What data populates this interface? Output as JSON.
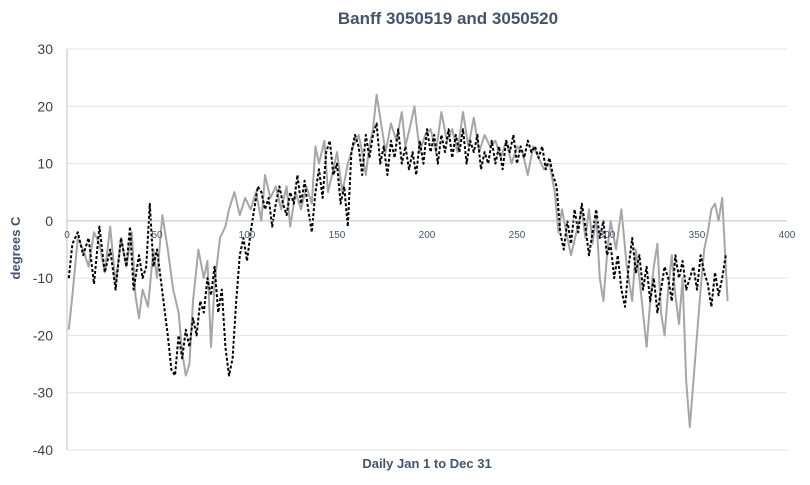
{
  "chart_data": {
    "type": "line",
    "title": "Banff 3050519 and 3050520",
    "xlabel": "Daily Jan 1 to Dec 31",
    "ylabel": "degrees C",
    "xlim": [
      0,
      400
    ],
    "ylim": [
      -40,
      30
    ],
    "x_ticks": [
      "0",
      "50",
      "100",
      "150",
      "200",
      "250",
      "300",
      "350",
      "400"
    ],
    "y_ticks": [
      "30",
      "20",
      "10",
      "0",
      "-10",
      "-20",
      "-30",
      "-40"
    ],
    "grid": "horizontal",
    "legend": "none",
    "series": [
      {
        "color": "#a6a6a6",
        "style": "solid",
        "points": [
          [
            1,
            -19
          ],
          [
            3,
            -13
          ],
          [
            6,
            -3
          ],
          [
            9,
            -5
          ],
          [
            12,
            -8
          ],
          [
            15,
            -2
          ],
          [
            18,
            -4
          ],
          [
            21,
            -9
          ],
          [
            24,
            -1
          ],
          [
            27,
            -11
          ],
          [
            30,
            -3
          ],
          [
            33,
            -8
          ],
          [
            36,
            -2
          ],
          [
            38,
            -13
          ],
          [
            40,
            -17
          ],
          [
            42,
            -12
          ],
          [
            45,
            -15
          ],
          [
            48,
            -5
          ],
          [
            50,
            -10
          ],
          [
            53,
            1
          ],
          [
            56,
            -5
          ],
          [
            59,
            -12
          ],
          [
            62,
            -16
          ],
          [
            64,
            -23
          ],
          [
            66,
            -27
          ],
          [
            68,
            -25
          ],
          [
            70,
            -14
          ],
          [
            73,
            -5
          ],
          [
            76,
            -10
          ],
          [
            78,
            -7
          ],
          [
            80,
            -22
          ],
          [
            82,
            -11
          ],
          [
            85,
            -3
          ],
          [
            88,
            -1
          ],
          [
            90,
            2
          ],
          [
            93,
            5
          ],
          [
            96,
            1
          ],
          [
            99,
            4
          ],
          [
            102,
            2
          ],
          [
            105,
            5
          ],
          [
            108,
            0
          ],
          [
            110,
            8
          ],
          [
            113,
            4
          ],
          [
            116,
            6
          ],
          [
            119,
            2
          ],
          [
            122,
            6
          ],
          [
            124,
            -1
          ],
          [
            127,
            5
          ],
          [
            130,
            2
          ],
          [
            133,
            6
          ],
          [
            136,
            3
          ],
          [
            138,
            13
          ],
          [
            140,
            10
          ],
          [
            143,
            14
          ],
          [
            145,
            5
          ],
          [
            148,
            9
          ],
          [
            150,
            12
          ],
          [
            153,
            5
          ],
          [
            156,
            10
          ],
          [
            159,
            13
          ],
          [
            162,
            15
          ],
          [
            164,
            12
          ],
          [
            166,
            8
          ],
          [
            168,
            13
          ],
          [
            170,
            16
          ],
          [
            172,
            22
          ],
          [
            174,
            18
          ],
          [
            177,
            12
          ],
          [
            180,
            17
          ],
          [
            183,
            14
          ],
          [
            186,
            19
          ],
          [
            188,
            13
          ],
          [
            191,
            17
          ],
          [
            193,
            20
          ],
          [
            196,
            12
          ],
          [
            199,
            15
          ],
          [
            202,
            16
          ],
          [
            205,
            12
          ],
          [
            208,
            19
          ],
          [
            211,
            14
          ],
          [
            214,
            16
          ],
          [
            217,
            12
          ],
          [
            220,
            19
          ],
          [
            223,
            13
          ],
          [
            226,
            18
          ],
          [
            229,
            12
          ],
          [
            232,
            15
          ],
          [
            235,
            13
          ],
          [
            238,
            14
          ],
          [
            241,
            11
          ],
          [
            244,
            14
          ],
          [
            247,
            10
          ],
          [
            250,
            13
          ],
          [
            253,
            12
          ],
          [
            256,
            8
          ],
          [
            259,
            13
          ],
          [
            262,
            11
          ],
          [
            265,
            9
          ],
          [
            268,
            10
          ],
          [
            271,
            5
          ],
          [
            273,
            -2
          ],
          [
            275,
            2
          ],
          [
            278,
            -3
          ],
          [
            280,
            -6
          ],
          [
            283,
            -2
          ],
          [
            286,
            2
          ],
          [
            288,
            -3
          ],
          [
            290,
            2
          ],
          [
            292,
            -4
          ],
          [
            294,
            1
          ],
          [
            296,
            -10
          ],
          [
            298,
            -14
          ],
          [
            300,
            -6
          ],
          [
            302,
            0
          ],
          [
            305,
            -5
          ],
          [
            308,
            2
          ],
          [
            311,
            -8
          ],
          [
            314,
            -14
          ],
          [
            316,
            -5
          ],
          [
            318,
            -10
          ],
          [
            320,
            -16
          ],
          [
            322,
            -22
          ],
          [
            324,
            -14
          ],
          [
            326,
            -8
          ],
          [
            328,
            -4
          ],
          [
            330,
            -16
          ],
          [
            332,
            -20
          ],
          [
            334,
            -12
          ],
          [
            336,
            -6
          ],
          [
            338,
            -13
          ],
          [
            340,
            -18
          ],
          [
            342,
            -10
          ],
          [
            344,
            -28
          ],
          [
            346,
            -36
          ],
          [
            348,
            -28
          ],
          [
            350,
            -20
          ],
          [
            352,
            -12
          ],
          [
            354,
            -5
          ],
          [
            356,
            -2
          ],
          [
            358,
            2
          ],
          [
            360,
            3
          ],
          [
            362,
            0
          ],
          [
            364,
            4
          ],
          [
            366,
            -8
          ],
          [
            367,
            -14
          ]
        ]
      },
      {
        "color": "#000000",
        "style": "dashed",
        "points": [
          [
            1,
            -10
          ],
          [
            3,
            -4
          ],
          [
            6,
            -2
          ],
          [
            9,
            -6
          ],
          [
            12,
            -3
          ],
          [
            15,
            -11
          ],
          [
            18,
            -1
          ],
          [
            21,
            -9
          ],
          [
            24,
            -5
          ],
          [
            27,
            -12
          ],
          [
            30,
            -3
          ],
          [
            33,
            -8
          ],
          [
            35,
            -1
          ],
          [
            37,
            -12
          ],
          [
            40,
            -6
          ],
          [
            42,
            -10
          ],
          [
            44,
            -8
          ],
          [
            46,
            3
          ],
          [
            48,
            -8
          ],
          [
            50,
            -5
          ],
          [
            52,
            -10
          ],
          [
            54,
            -15
          ],
          [
            56,
            -20
          ],
          [
            58,
            -26
          ],
          [
            60,
            -27
          ],
          [
            62,
            -20
          ],
          [
            64,
            -24
          ],
          [
            66,
            -19
          ],
          [
            68,
            -22
          ],
          [
            70,
            -17
          ],
          [
            72,
            -20
          ],
          [
            74,
            -14
          ],
          [
            76,
            -16
          ],
          [
            78,
            -10
          ],
          [
            80,
            -13
          ],
          [
            82,
            -8
          ],
          [
            84,
            -16
          ],
          [
            86,
            -12
          ],
          [
            88,
            -22
          ],
          [
            90,
            -27
          ],
          [
            92,
            -24
          ],
          [
            94,
            -14
          ],
          [
            96,
            -6
          ],
          [
            98,
            -3
          ],
          [
            100,
            -7
          ],
          [
            102,
            -2
          ],
          [
            104,
            2
          ],
          [
            106,
            6
          ],
          [
            108,
            5
          ],
          [
            110,
            2
          ],
          [
            112,
            4
          ],
          [
            114,
            -1
          ],
          [
            116,
            3
          ],
          [
            118,
            6
          ],
          [
            120,
            3
          ],
          [
            122,
            1
          ],
          [
            124,
            5
          ],
          [
            126,
            3
          ],
          [
            128,
            8
          ],
          [
            130,
            3
          ],
          [
            132,
            7
          ],
          [
            134,
            2
          ],
          [
            136,
            -2
          ],
          [
            138,
            5
          ],
          [
            140,
            9
          ],
          [
            142,
            4
          ],
          [
            144,
            12
          ],
          [
            146,
            14
          ],
          [
            148,
            8
          ],
          [
            150,
            10
          ],
          [
            152,
            3
          ],
          [
            154,
            6
          ],
          [
            156,
            -1
          ],
          [
            158,
            12
          ],
          [
            160,
            15
          ],
          [
            162,
            13
          ],
          [
            164,
            8
          ],
          [
            166,
            15
          ],
          [
            168,
            11
          ],
          [
            170,
            15
          ],
          [
            172,
            17
          ],
          [
            174,
            10
          ],
          [
            176,
            13
          ],
          [
            178,
            8
          ],
          [
            180,
            14
          ],
          [
            182,
            11
          ],
          [
            184,
            16
          ],
          [
            186,
            10
          ],
          [
            188,
            13
          ],
          [
            190,
            9
          ],
          [
            192,
            12
          ],
          [
            194,
            8
          ],
          [
            196,
            14
          ],
          [
            198,
            10
          ],
          [
            200,
            16
          ],
          [
            202,
            12
          ],
          [
            204,
            15
          ],
          [
            206,
            10
          ],
          [
            208,
            15
          ],
          [
            210,
            12
          ],
          [
            212,
            16
          ],
          [
            214,
            11
          ],
          [
            216,
            15
          ],
          [
            218,
            12
          ],
          [
            220,
            16
          ],
          [
            222,
            10
          ],
          [
            224,
            14
          ],
          [
            226,
            12
          ],
          [
            228,
            15
          ],
          [
            230,
            9
          ],
          [
            232,
            12
          ],
          [
            234,
            10
          ],
          [
            236,
            14
          ],
          [
            238,
            10
          ],
          [
            240,
            13
          ],
          [
            242,
            9
          ],
          [
            244,
            14
          ],
          [
            246,
            12
          ],
          [
            248,
            15
          ],
          [
            250,
            10
          ],
          [
            252,
            13
          ],
          [
            254,
            11
          ],
          [
            256,
            14
          ],
          [
            258,
            12
          ],
          [
            260,
            13
          ],
          [
            262,
            11
          ],
          [
            264,
            13
          ],
          [
            266,
            9
          ],
          [
            268,
            11
          ],
          [
            270,
            8
          ],
          [
            272,
            6
          ],
          [
            274,
            -2
          ],
          [
            276,
            -5
          ],
          [
            278,
            0
          ],
          [
            280,
            -4
          ],
          [
            282,
            2
          ],
          [
            284,
            -2
          ],
          [
            286,
            3
          ],
          [
            288,
            -1
          ],
          [
            290,
            -6
          ],
          [
            292,
            -2
          ],
          [
            294,
            2
          ],
          [
            296,
            -3
          ],
          [
            298,
            0
          ],
          [
            300,
            -6
          ],
          [
            302,
            -4
          ],
          [
            304,
            -10
          ],
          [
            306,
            -6
          ],
          [
            308,
            -12
          ],
          [
            310,
            -15
          ],
          [
            312,
            -8
          ],
          [
            314,
            -3
          ],
          [
            316,
            -9
          ],
          [
            318,
            -6
          ],
          [
            320,
            -12
          ],
          [
            322,
            -8
          ],
          [
            324,
            -14
          ],
          [
            326,
            -10
          ],
          [
            328,
            -16
          ],
          [
            330,
            -12
          ],
          [
            332,
            -8
          ],
          [
            334,
            -10
          ],
          [
            336,
            -14
          ],
          [
            338,
            -6
          ],
          [
            340,
            -10
          ],
          [
            342,
            -7
          ],
          [
            344,
            -12
          ],
          [
            346,
            -10
          ],
          [
            348,
            -8
          ],
          [
            350,
            -12
          ],
          [
            352,
            -6
          ],
          [
            354,
            -9
          ],
          [
            356,
            -11
          ],
          [
            358,
            -15
          ],
          [
            360,
            -9
          ],
          [
            362,
            -13
          ],
          [
            364,
            -10
          ],
          [
            366,
            -6
          ]
        ]
      }
    ]
  }
}
